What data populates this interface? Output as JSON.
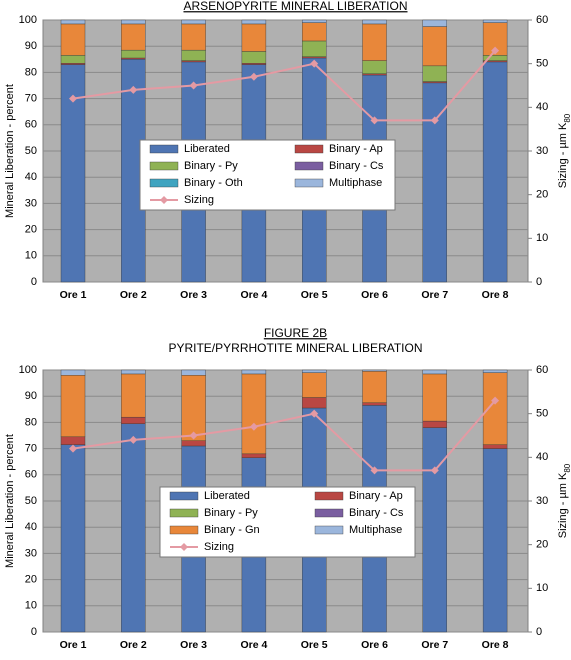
{
  "chart_data": [
    {
      "type": "stacked_bar_line",
      "title": "ARSENOPYRITE MINERAL LIBERATION",
      "ylabel": "Mineral Liberation - percent",
      "y2label": "Sizing - µm K",
      "y2label_sub": "80",
      "categories": [
        "Ore 1",
        "Ore 2",
        "Ore 3",
        "Ore 4",
        "Ore 5",
        "Ore 6",
        "Ore 7",
        "Ore 8"
      ],
      "ylim": [
        0,
        100
      ],
      "yticks": [
        0,
        10,
        20,
        30,
        40,
        50,
        60,
        70,
        80,
        90,
        100
      ],
      "y2lim": [
        0,
        60
      ],
      "y2ticks": [
        0,
        10,
        20,
        30,
        40,
        50,
        60
      ],
      "grid": true,
      "series": [
        {
          "name": "Liberated",
          "color": "#4f75b3",
          "values": [
            83,
            85,
            84,
            83,
            85.5,
            79,
            76,
            84
          ]
        },
        {
          "name": "Binary - Ap",
          "color": "#b94743",
          "values": [
            0.5,
            0.5,
            0.5,
            0.5,
            0.5,
            0.5,
            0.5,
            0.5
          ]
        },
        {
          "name": "Binary - Py",
          "color": "#8fb254",
          "values": [
            3,
            3,
            4,
            4.5,
            6,
            5,
            6,
            2
          ]
        },
        {
          "name": "Binary - Cs",
          "color": "#7a5ea0",
          "values": [
            0,
            0,
            0,
            0,
            0,
            0,
            0,
            0
          ]
        },
        {
          "name": "Binary - Oth",
          "color": "#3fa4c0",
          "values": [
            0,
            0,
            0,
            0,
            0,
            0,
            0,
            0
          ]
        },
        {
          "color": "#e8873a",
          "values": [
            12,
            10,
            10,
            10.5,
            7,
            14,
            15,
            12.5
          ]
        },
        {
          "name": "Multiphase",
          "color": "#9bb6dc",
          "values": [
            1.5,
            1.5,
            1.5,
            1.5,
            1,
            1.5,
            2.5,
            1
          ]
        },
        {
          "name": "Sizing",
          "color": "#e49aa3",
          "axis": "y2",
          "values": [
            42,
            44,
            45,
            47,
            50,
            37,
            37,
            53
          ]
        }
      ]
    },
    {
      "type": "stacked_bar_line",
      "title": "FIGURE 2B",
      "subtitle": "PYRITE/PYRRHOTITE MINERAL LIBERATION",
      "ylabel": "Mineral Liberation - percent",
      "y2label": "Sizing - µm K",
      "y2label_sub": "80",
      "categories": [
        "Ore 1",
        "Ore 2",
        "Ore 3",
        "Ore 4",
        "Ore 5",
        "Ore 6",
        "Ore 7",
        "Ore 8"
      ],
      "ylim": [
        0,
        100
      ],
      "yticks": [
        0,
        10,
        20,
        30,
        40,
        50,
        60,
        70,
        80,
        90,
        100
      ],
      "y2lim": [
        0,
        60
      ],
      "y2ticks": [
        0,
        10,
        20,
        30,
        40,
        50,
        60
      ],
      "grid": true,
      "series": [
        {
          "name": "Liberated",
          "color": "#4f75b3",
          "values": [
            71.5,
            79.5,
            71,
            66.5,
            85.5,
            86.5,
            78,
            70
          ]
        },
        {
          "name": "Binary - Ap",
          "color": "#b94743",
          "values": [
            3,
            2.5,
            2,
            1.5,
            4,
            1,
            2.5,
            1.5
          ]
        },
        {
          "name": "Binary - Py",
          "color": "#8fb254",
          "values": [
            0,
            0,
            0,
            0,
            0,
            0,
            0,
            0
          ]
        },
        {
          "name": "Binary - Cs",
          "color": "#7a5ea0",
          "values": [
            0,
            0,
            0,
            0,
            0,
            0,
            0,
            0
          ]
        },
        {
          "name": "Binary - Gn",
          "color": "#e8873a",
          "values": [
            23.5,
            16.5,
            25,
            30.5,
            9.5,
            12,
            18,
            27.5
          ]
        },
        {
          "name": "Multiphase",
          "color": "#9bb6dc",
          "values": [
            2,
            1.5,
            2,
            1.5,
            1,
            0.5,
            1.5,
            1
          ]
        },
        {
          "name": "Sizing",
          "color": "#e49aa3",
          "axis": "y2",
          "values": [
            42,
            44,
            45,
            47,
            50,
            37,
            37,
            53
          ]
        }
      ]
    }
  ]
}
